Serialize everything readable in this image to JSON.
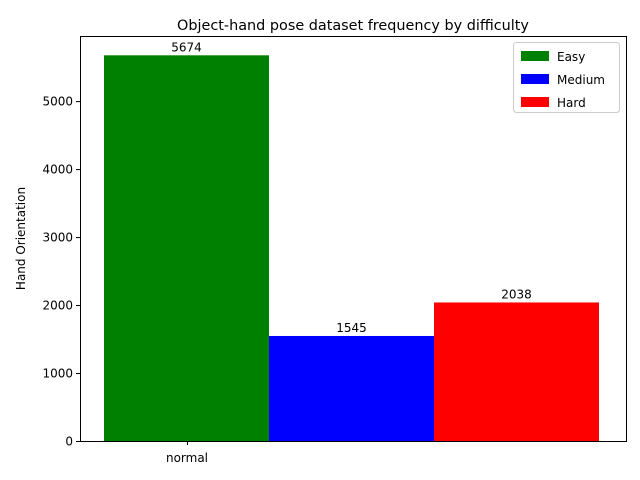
{
  "chart_data": {
    "type": "bar",
    "title": "Object-hand pose dataset frequency by difficulty",
    "xlabel": "",
    "ylabel": "Hand Orientation",
    "categories": [
      "normal"
    ],
    "series": [
      {
        "name": "Easy",
        "values": [
          5674
        ],
        "color": "#008000"
      },
      {
        "name": "Medium",
        "values": [
          1545
        ],
        "color": "#0000ff"
      },
      {
        "name": "Hard",
        "values": [
          2038
        ],
        "color": "#ff0000"
      }
    ],
    "data_labels": [
      "5674",
      "1545",
      "2038"
    ],
    "ylim": [
      0,
      5958
    ],
    "yticks": [
      0,
      1000,
      2000,
      3000,
      4000,
      5000
    ],
    "ytick_labels": [
      "0",
      "1000",
      "2000",
      "3000",
      "4000",
      "5000"
    ],
    "grid": false,
    "legend_position": "top-right"
  }
}
